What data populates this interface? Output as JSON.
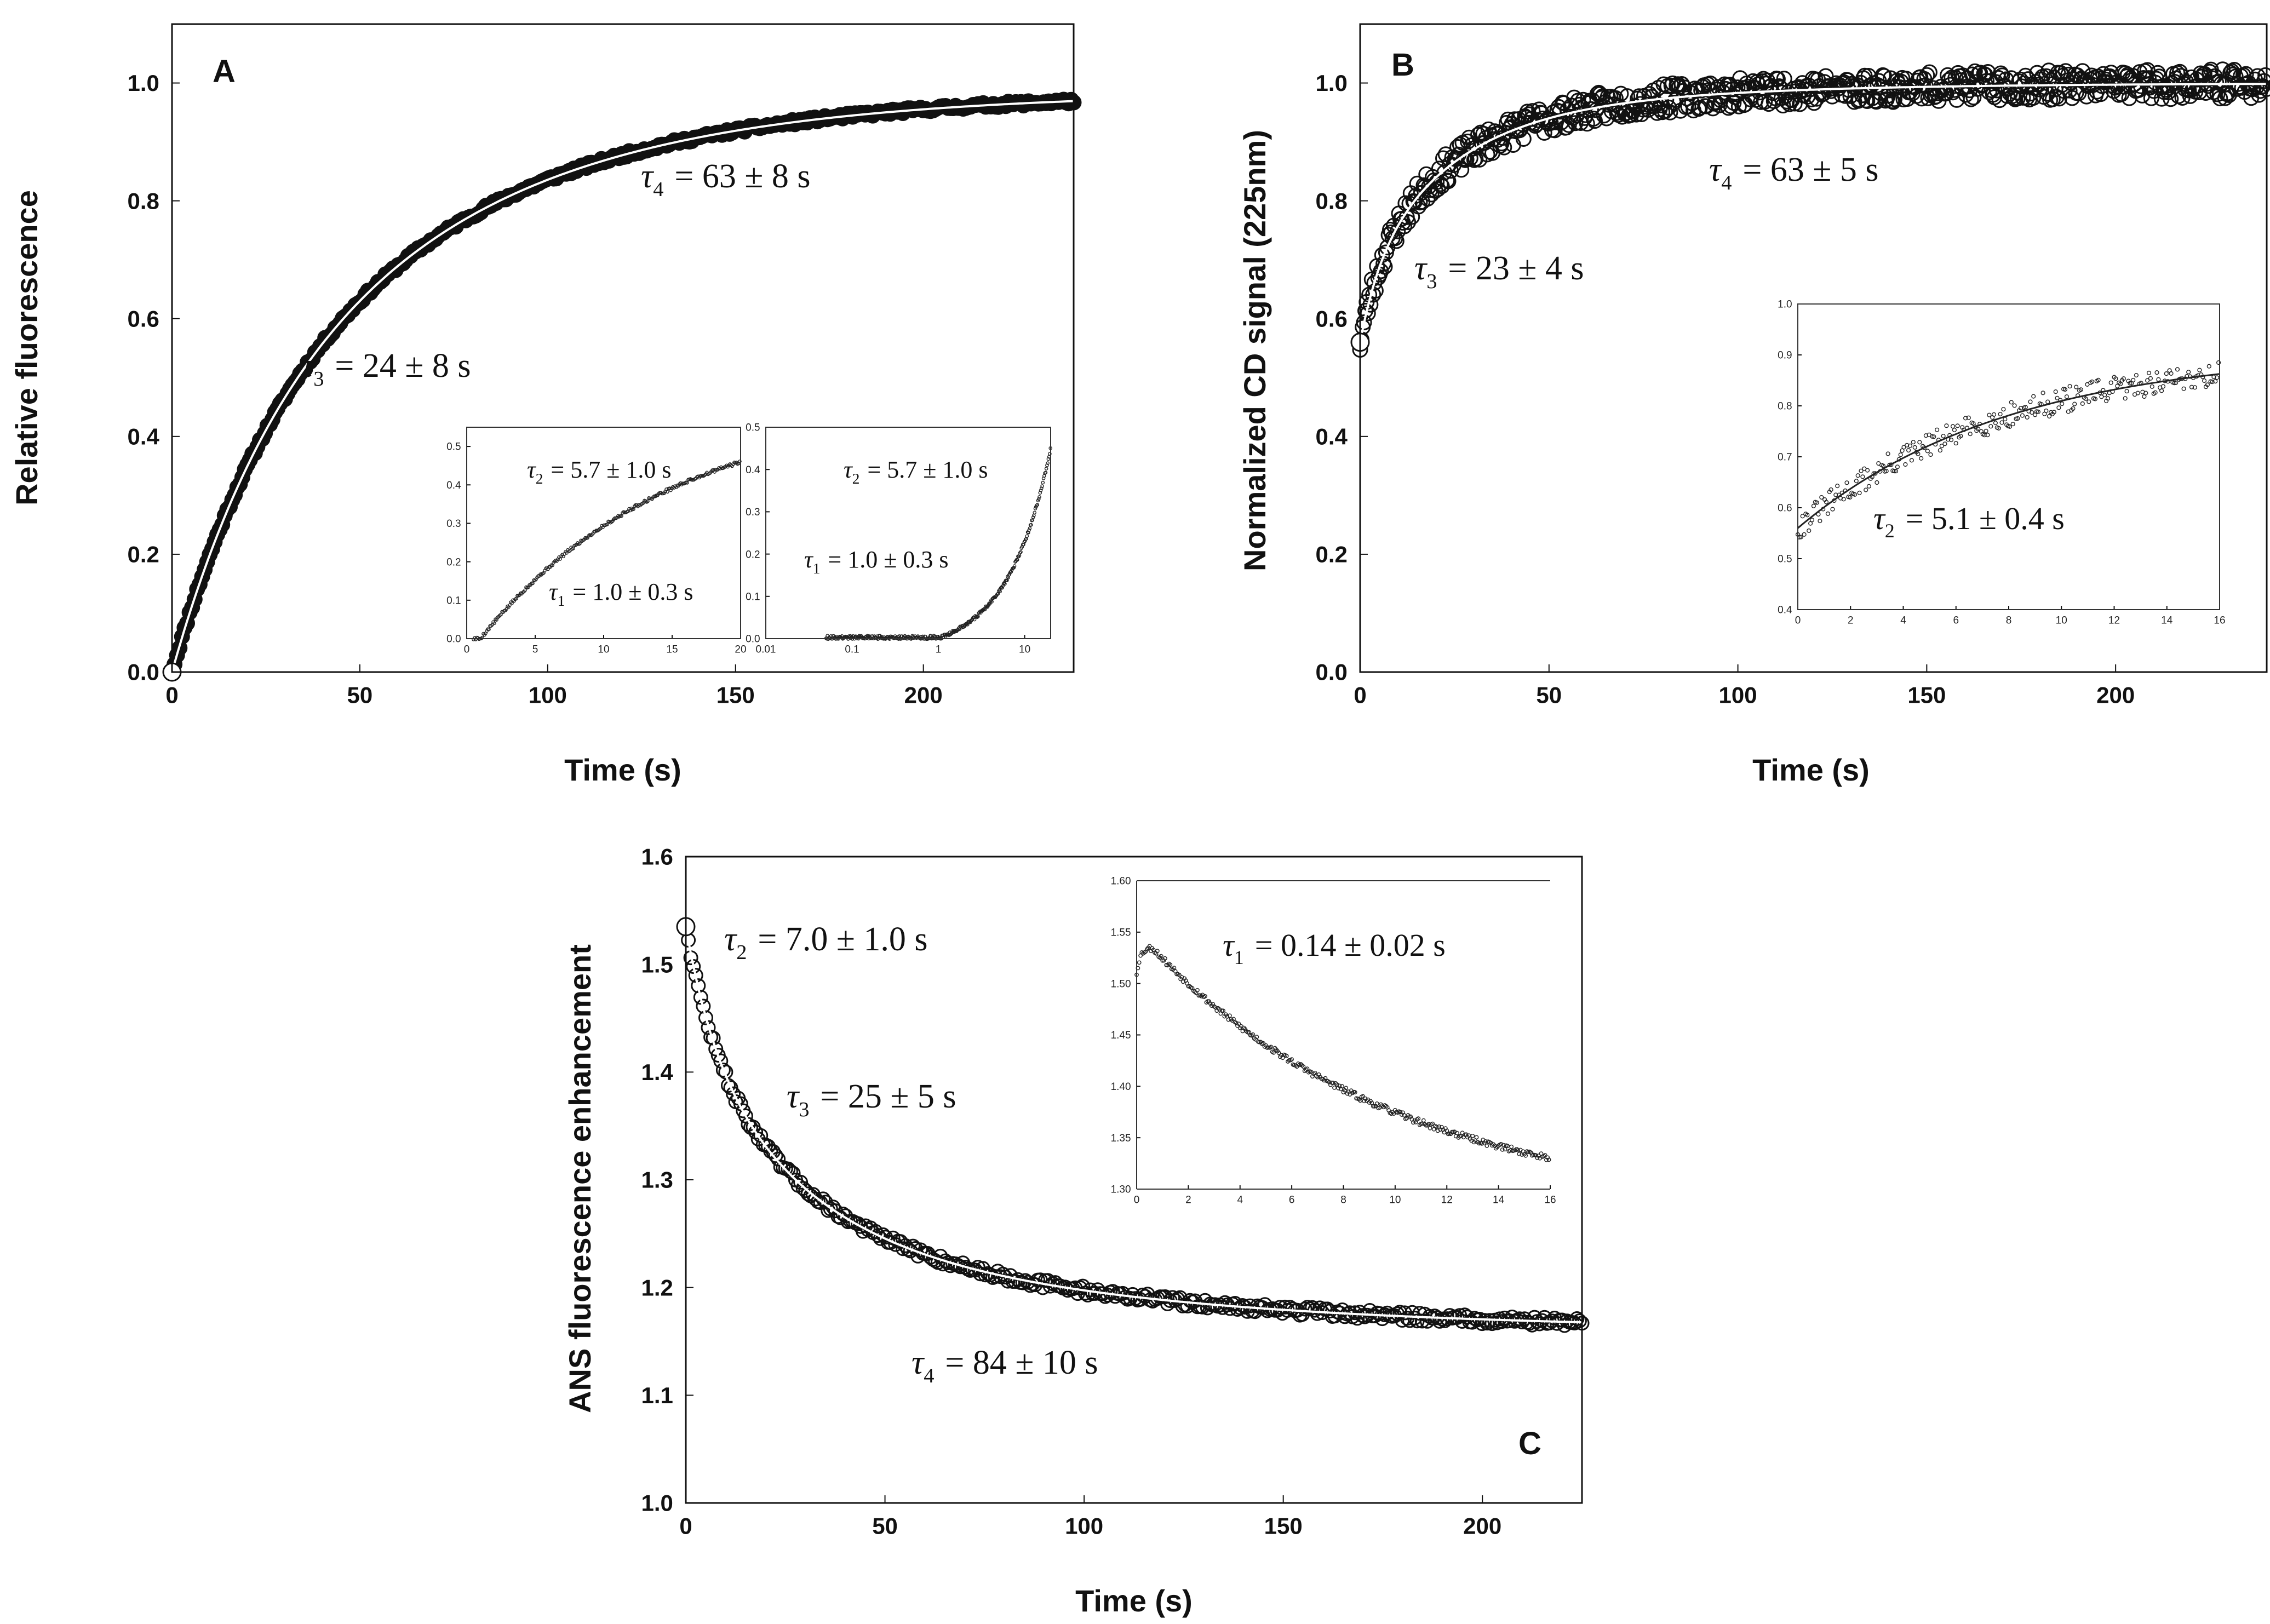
{
  "chart_data": [
    {
      "id": "A",
      "type": "scatter",
      "panel_label": "A",
      "xlabel": "Time (s)",
      "ylabel": "Relative fluorescence",
      "xlim": [
        0,
        240
      ],
      "ylim": [
        0.0,
        1.1
      ],
      "xticks": [
        0,
        50,
        100,
        150,
        200
      ],
      "yticks": [
        0.0,
        0.2,
        0.4,
        0.6,
        0.8,
        1.0
      ],
      "ytick_format": 1,
      "series": [
        {
          "name": "data",
          "start": 0.0,
          "end": 0.985,
          "amplitudes": [
            0.28,
            0.72
          ],
          "taus": [
            24,
            63
          ],
          "sign": 1,
          "noise": 0.004,
          "n_points": 360
        }
      ],
      "annotations": [
        {
          "sub": "4",
          "text": "= 63 ± 8 s"
        },
        {
          "sub": "3",
          "text": "= 24 ± 8 s"
        }
      ],
      "insets": [
        {
          "id": "A-inset-linear",
          "xlim": [
            0,
            20
          ],
          "ylim": [
            0,
            0.55
          ],
          "xticks": [
            0,
            5,
            10,
            15,
            20
          ],
          "yticks": [
            0.0,
            0.1,
            0.2,
            0.3,
            0.4,
            0.5
          ],
          "yfmt": 1,
          "log": false,
          "annotations": [
            {
              "sub": "2",
              "text": "= 5.7 ± 1.0 s"
            },
            {
              "sub": "1",
              "text": "= 1.0 ± 0.3 s"
            }
          ]
        },
        {
          "id": "A-inset-log",
          "xlim": [
            0.01,
            20
          ],
          "ylim": [
            0,
            0.5
          ],
          "xticks": [
            0.01,
            0.1,
            1,
            10
          ],
          "yticks": [
            0.0,
            0.1,
            0.2,
            0.3,
            0.4,
            0.5
          ],
          "yfmt": 1,
          "log": true,
          "annotations": [
            {
              "sub": "2",
              "text": "= 5.7 ± 1.0 s"
            },
            {
              "sub": "1",
              "text": "= 1.0 ± 0.3 s"
            }
          ]
        }
      ]
    },
    {
      "id": "B",
      "type": "scatter",
      "panel_label": "B",
      "xlabel": "Time (s)",
      "ylabel": "Normalized CD signal (225nm)",
      "xlim": [
        0,
        240
      ],
      "ylim": [
        0.0,
        1.1
      ],
      "xticks": [
        0,
        50,
        100,
        150,
        200
      ],
      "yticks": [
        0.0,
        0.2,
        0.4,
        0.6,
        0.8,
        1.0
      ],
      "ytick_format": 1,
      "series": [
        {
          "name": "data",
          "start": 0.56,
          "end": 1.0,
          "amplitudes": [
            0.25,
            0.6,
            0.15
          ],
          "taus": [
            5.1,
            23,
            63
          ],
          "sign": 1,
          "noise": 0.025,
          "n_points": 700
        }
      ],
      "annotations": [
        {
          "sub": "4",
          "text": "= 63 ± 5 s"
        },
        {
          "sub": "3",
          "text": "= 23 ± 4 s"
        }
      ],
      "insets": [
        {
          "id": "B-inset",
          "xlim": [
            0,
            16
          ],
          "ylim": [
            0.4,
            1.0
          ],
          "xticks": [
            0,
            2,
            4,
            6,
            8,
            10,
            12,
            14,
            16
          ],
          "yticks": [
            0.4,
            0.5,
            0.6,
            0.7,
            0.8,
            0.9,
            1.0
          ],
          "yfmt": 1,
          "log": false,
          "annotations": [
            {
              "sub": "2",
              "text": "= 5.1 ± 0.4 s"
            }
          ]
        }
      ]
    },
    {
      "id": "C",
      "type": "scatter",
      "panel_label": "C",
      "xlabel": "Time (s)",
      "ylabel": "ANS fluorescence enhancement",
      "xlim": [
        0,
        225
      ],
      "ylim": [
        1.0,
        1.6
      ],
      "xticks": [
        0,
        50,
        100,
        150,
        200
      ],
      "yticks": [
        1.0,
        1.1,
        1.2,
        1.3,
        1.4,
        1.5,
        1.6
      ],
      "ytick_format": 1,
      "series": [
        {
          "name": "data",
          "start": 1.535,
          "end": 1.16,
          "amplitudes": [
            0.24,
            0.46,
            0.3
          ],
          "taus": [
            7.0,
            25,
            84
          ],
          "sign": -1,
          "noise": 0.004,
          "n_points": 360
        }
      ],
      "annotations": [
        {
          "sub": "2",
          "text": "= 7.0 ± 1.0 s"
        },
        {
          "sub": "3",
          "text": "= 25 ± 5 s"
        },
        {
          "sub": "4",
          "text": "= 84 ± 10 s"
        }
      ],
      "insets": [
        {
          "id": "C-inset",
          "xlim": [
            0,
            16
          ],
          "ylim": [
            1.3,
            1.6
          ],
          "xticks": [
            0,
            2,
            4,
            6,
            8,
            10,
            12,
            14,
            16
          ],
          "yticks": [
            1.3,
            1.35,
            1.4,
            1.45,
            1.5,
            1.55,
            1.6
          ],
          "yfmt": 2,
          "log": false,
          "annotations": [
            {
              "sub": "1",
              "text": "= 0.14 ± 0.02 s"
            }
          ]
        }
      ]
    }
  ]
}
